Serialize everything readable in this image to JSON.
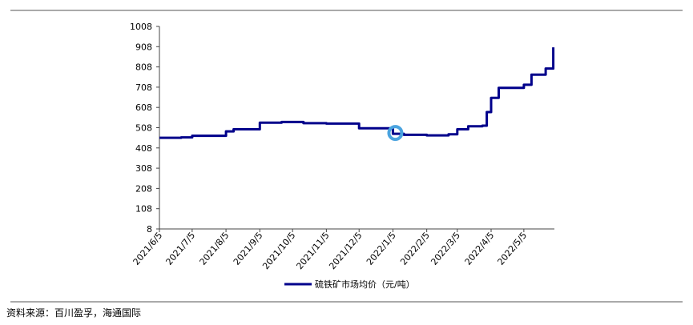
{
  "chart_data": {
    "type": "line",
    "series": [
      {
        "name": "硫铁矿市场均价（元/吨）",
        "color": "#00008B",
        "x": [
          "2021/6/5",
          "2021/6/25",
          "2021/7/5",
          "2021/7/25",
          "2021/8/5",
          "2021/8/12",
          "2021/8/25",
          "2021/9/5",
          "2021/9/25",
          "2021/10/5",
          "2021/10/15",
          "2021/10/25",
          "2021/11/5",
          "2021/11/25",
          "2021/12/5",
          "2021/12/15",
          "2021/12/25",
          "2022/1/5",
          "2022/1/15",
          "2022/2/5",
          "2022/2/15",
          "2022/2/25",
          "2022/3/5",
          "2022/3/15",
          "2022/3/28",
          "2022/4/1",
          "2022/4/5",
          "2022/4/12",
          "2022/4/25",
          "2022/5/5",
          "2022/5/12",
          "2022/5/25",
          "2022/6/1"
        ],
        "values": [
          458,
          460,
          468,
          468,
          490,
          500,
          500,
          533,
          536,
          536,
          530,
          530,
          528,
          528,
          505,
          505,
          505,
          478,
          473,
          470,
          470,
          475,
          500,
          515,
          518,
          585,
          655,
          705,
          705,
          720,
          770,
          800,
          905
        ]
      }
    ],
    "y_ticks": [
      "1008",
      "908",
      "808",
      "708",
      "608",
      "508",
      "408",
      "308",
      "208",
      "108",
      "8"
    ],
    "x_ticks": [
      "2021/6/5",
      "2021/7/5",
      "2021/8/5",
      "2021/9/5",
      "2021/10/5",
      "2021/11/5",
      "2021/12/5",
      "2022/1/5",
      "2022/2/5",
      "2022/3/5",
      "2022/4/5",
      "2022/5/5"
    ],
    "ylim": [
      8,
      1008
    ],
    "xlim": [
      "2021/6/5",
      "2022/6/2"
    ],
    "annotations": [
      {
        "type": "circle",
        "at": "2022/1/5",
        "color": "#4AA3DF"
      }
    ],
    "grid": false,
    "legend": "bottom-center"
  },
  "source_text": "资料来源：百川盈孚，海通国际"
}
